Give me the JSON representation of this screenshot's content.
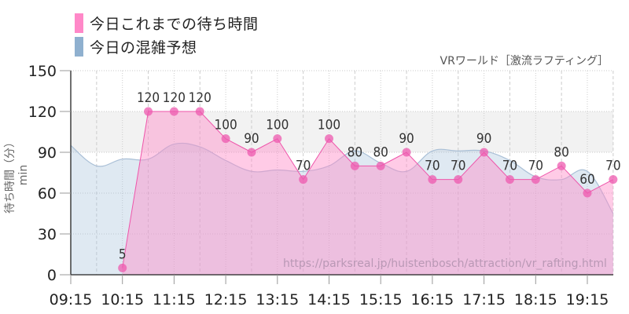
{
  "legend": {
    "items": [
      {
        "label": "今日これまでの待ち時間",
        "color": "#ff88c8"
      },
      {
        "label": "今日の混雑予想",
        "color": "#8fb0cf"
      }
    ]
  },
  "subtitle": "VRワールド［激流ラフティング］",
  "watermark": "https://parksreal.jp/huistenbosch/attraction/vr_rafting.html",
  "ylabel": "待ち時間（分）min",
  "colors": {
    "actual_line": "#ee55aa",
    "actual_fill": "rgba(255,140,200,0.45)",
    "actual_point": "rgba(238,90,175,0.75)",
    "forecast_line": "#a9bfd6",
    "forecast_fill": "rgba(170,198,222,0.38)",
    "band": "#f2f2f2"
  },
  "chart_data": {
    "type": "area",
    "title": "VRワールド［激流ラフティング］",
    "xlabel": "",
    "ylabel": "待ち時間（分）min",
    "ylim": [
      0,
      150
    ],
    "yticks": [
      0,
      30,
      60,
      90,
      120,
      150
    ],
    "xticks": [
      "09:15",
      "10:15",
      "11:15",
      "12:15",
      "13:15",
      "14:15",
      "15:15",
      "16:15",
      "17:15",
      "18:15",
      "19:15"
    ],
    "grid": true,
    "legend_position": "top-left",
    "highlight_band": [
      90,
      120
    ],
    "series": [
      {
        "name": "今日これまでの待ち時間",
        "x": [
          "10:15",
          "10:45",
          "11:15",
          "11:45",
          "12:15",
          "12:45",
          "13:15",
          "13:45",
          "14:15",
          "14:45",
          "15:15",
          "15:45",
          "16:15",
          "16:45",
          "17:15",
          "17:45",
          "18:15",
          "18:45",
          "19:15",
          "19:45"
        ],
        "values": [
          5,
          120,
          120,
          120,
          100,
          90,
          100,
          70,
          100,
          80,
          80,
          90,
          70,
          70,
          90,
          70,
          70,
          80,
          60,
          70
        ]
      },
      {
        "name": "今日の混雑予想",
        "x": [
          "09:15",
          "09:45",
          "10:15",
          "10:45",
          "11:15",
          "11:45",
          "12:15",
          "12:45",
          "13:15",
          "13:45",
          "14:15",
          "14:45",
          "15:15",
          "15:45",
          "16:15",
          "16:45",
          "17:15",
          "17:45",
          "18:15",
          "18:45",
          "19:15",
          "19:45"
        ],
        "values": [
          95,
          80,
          85,
          85,
          96,
          94,
          84,
          76,
          77,
          76,
          80,
          91,
          82,
          76,
          91,
          91,
          91,
          84,
          72,
          70,
          76,
          45
        ]
      }
    ]
  }
}
